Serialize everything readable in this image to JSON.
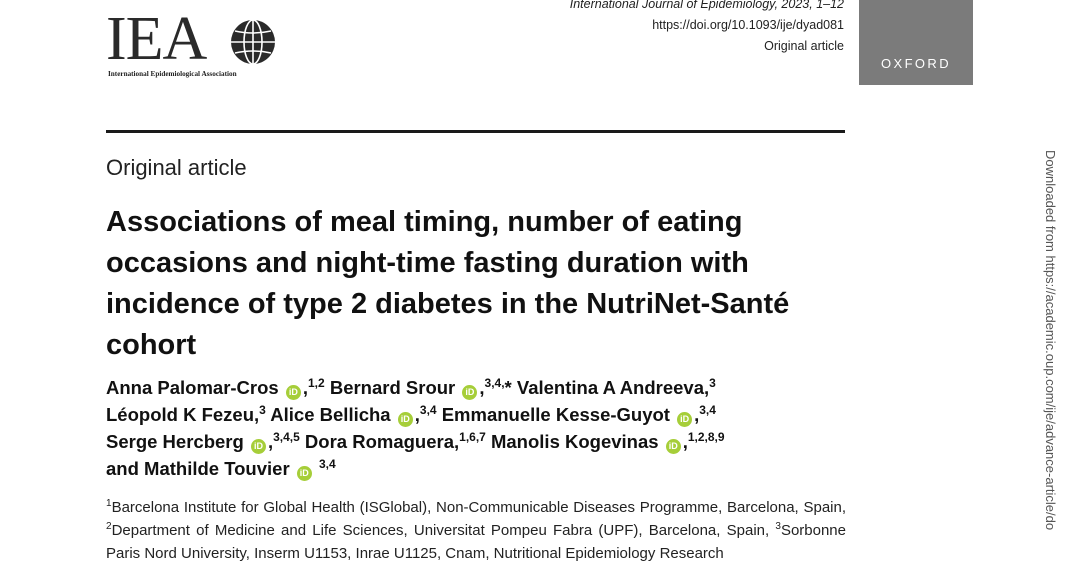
{
  "header": {
    "logo_letters": "IEA",
    "logo_tagline": "International Epidemiological Association",
    "journal_line": "International Journal of Epidemiology, 2023, 1–12",
    "doi": "https://doi.org/10.1093/ije/dyad081",
    "article_type_small": "Original article",
    "publisher": "OXFORD"
  },
  "article_type": "Original article",
  "title": "Associations of meal timing, number of eating occasions and night-time fasting duration with incidence of type 2 diabetes in the NutriNet-Santé cohort",
  "authors": [
    {
      "name": "Anna Palomar-Cros",
      "orcid": true,
      "sup": "1,2",
      "sep": ""
    },
    {
      "name": "Bernard Srour",
      "orcid": true,
      "sup": "3,4,",
      "sep": "*"
    },
    {
      "name": "Valentina A Andreeva,",
      "orcid": false,
      "sup": "3",
      "sep": ""
    },
    {
      "name": "Léopold K Fezeu,",
      "orcid": false,
      "sup": "3",
      "sep": ""
    },
    {
      "name": "Alice Bellicha",
      "orcid": true,
      "sup": "3,4",
      "sep": ""
    },
    {
      "name": "Emmanuelle Kesse-Guyot",
      "orcid": true,
      "sup": "3,4",
      "sep": ""
    },
    {
      "name": "Serge Hercberg",
      "orcid": true,
      "sup": "3,4,5",
      "sep": ""
    },
    {
      "name": "Dora Romaguera,",
      "orcid": false,
      "sup": "1,6,7",
      "sep": ""
    },
    {
      "name": "Manolis Kogevinas",
      "orcid": true,
      "sup": "1,2,8,9",
      "sep": ""
    },
    {
      "name": "and Mathilde Touvier",
      "orcid": true,
      "sup": "3,4",
      "sep": ""
    }
  ],
  "affiliations": [
    {
      "sup": "1",
      "text": "Barcelona Institute for Global Health (ISGlobal), Non-Communicable Diseases Programme, Barcelona, Spain, "
    },
    {
      "sup": "2",
      "text": "Department of Medicine and Life Sciences, Universitat Pompeu Fabra (UPF), Barcelona, Spain, "
    },
    {
      "sup": "3",
      "text": "Sorbonne Paris Nord University, Inserm U1153, Inrae U1125, Cnam, Nutritional Epidemiology Research"
    }
  ],
  "side_note": "Downloaded from https://academic.oup.com/ije/advance-article/do",
  "orcid_label": "iD",
  "colors": {
    "orcid": "#a6ce39",
    "oxford_bg": "#7b7b7b"
  }
}
